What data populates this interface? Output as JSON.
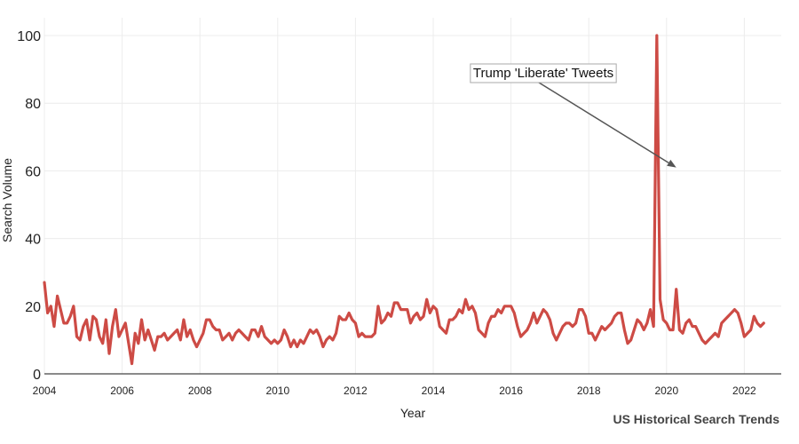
{
  "chart_data": {
    "type": "line",
    "title": "",
    "xlabel": "Year",
    "ylabel": "Search Volume",
    "xlim": [
      2004,
      2022.95
    ],
    "ylim": [
      0,
      100
    ],
    "x_ticks": [
      "2004",
      "2006",
      "2008",
      "2010",
      "2012",
      "2014",
      "2016",
      "2018",
      "2020",
      "2022"
    ],
    "y_ticks": [
      "0",
      "20",
      "40",
      "60",
      "80",
      "100"
    ],
    "grid": true,
    "line_color": "#cd4b45",
    "start": "2004-01",
    "series": [
      {
        "values": [
          27,
          18,
          20,
          14,
          23,
          19,
          15,
          15,
          17,
          20,
          11,
          10,
          14,
          16,
          10,
          17,
          16,
          11,
          9,
          16,
          6,
          14,
          19,
          11,
          13,
          15,
          9,
          3,
          12,
          9,
          16,
          10,
          13,
          10,
          7,
          11,
          11,
          12,
          10,
          11,
          12,
          13,
          10,
          16,
          11,
          13,
          10,
          8,
          10,
          12,
          16,
          16,
          14,
          13,
          13,
          10,
          11,
          12,
          10,
          12,
          13,
          12,
          11,
          10,
          13,
          13,
          11,
          14,
          11,
          10,
          9,
          10,
          9,
          10,
          13,
          11,
          8,
          10,
          8,
          10,
          9,
          11,
          13,
          12,
          13,
          11,
          8,
          10,
          11,
          10,
          12,
          17,
          16,
          16,
          18,
          16,
          15,
          11,
          12,
          11,
          11,
          11,
          12,
          20,
          15,
          16,
          18,
          17,
          21,
          21,
          19,
          19,
          19,
          15,
          17,
          18,
          16,
          17,
          22,
          18,
          20,
          19,
          14,
          13,
          12,
          16,
          16,
          17,
          19,
          18,
          22,
          19,
          20,
          18,
          13,
          12,
          11,
          15,
          17,
          17,
          19,
          18,
          20,
          20,
          20,
          18,
          14,
          11,
          12,
          13,
          15,
          18,
          15,
          17,
          19,
          18,
          16,
          12,
          10,
          12,
          14,
          15,
          15,
          14,
          15,
          19,
          19,
          17,
          12,
          12,
          10,
          12,
          14,
          13,
          14,
          15,
          17,
          18,
          18,
          13,
          9,
          10,
          13,
          16,
          15,
          13,
          15,
          19,
          14,
          100,
          22,
          16,
          15,
          13,
          13,
          25,
          13,
          12,
          15,
          16,
          14,
          14,
          12,
          10,
          9,
          10,
          11,
          12,
          11,
          15,
          16,
          17,
          18,
          19,
          18,
          15,
          11,
          12,
          13,
          17,
          15,
          14,
          15
        ]
      }
    ],
    "annotation": {
      "text": "Trump 'Liberate' Tweets",
      "x": 2020.25,
      "y": 61
    }
  },
  "footer": {
    "source": "US Historical Search Trends"
  }
}
